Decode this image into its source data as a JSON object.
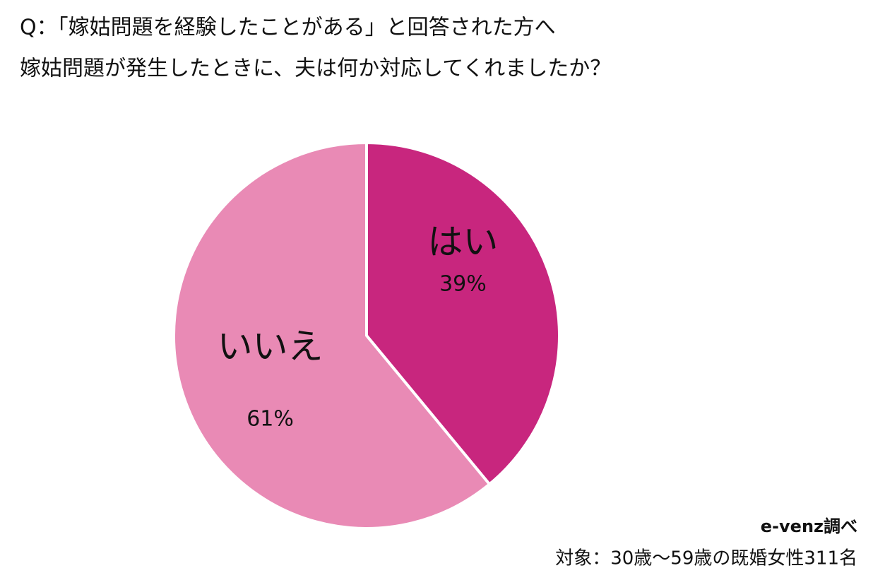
{
  "chart_data": {
    "type": "pie",
    "title": "Q：「嫁姑問題を経験したことがある」と回答された方へ",
    "subtitle": "嫁姑問題が発生したときに、夫は何か対応してくれましたか？",
    "categories": [
      "はい",
      "いいえ"
    ],
    "values": [
      39,
      61
    ],
    "value_labels": [
      "39%",
      "61%"
    ],
    "colors": [
      "#c8267e",
      "#e98ab5"
    ],
    "source": "e-venz調べ",
    "note": "対象：30歳〜59歳の既婚女性311名"
  }
}
